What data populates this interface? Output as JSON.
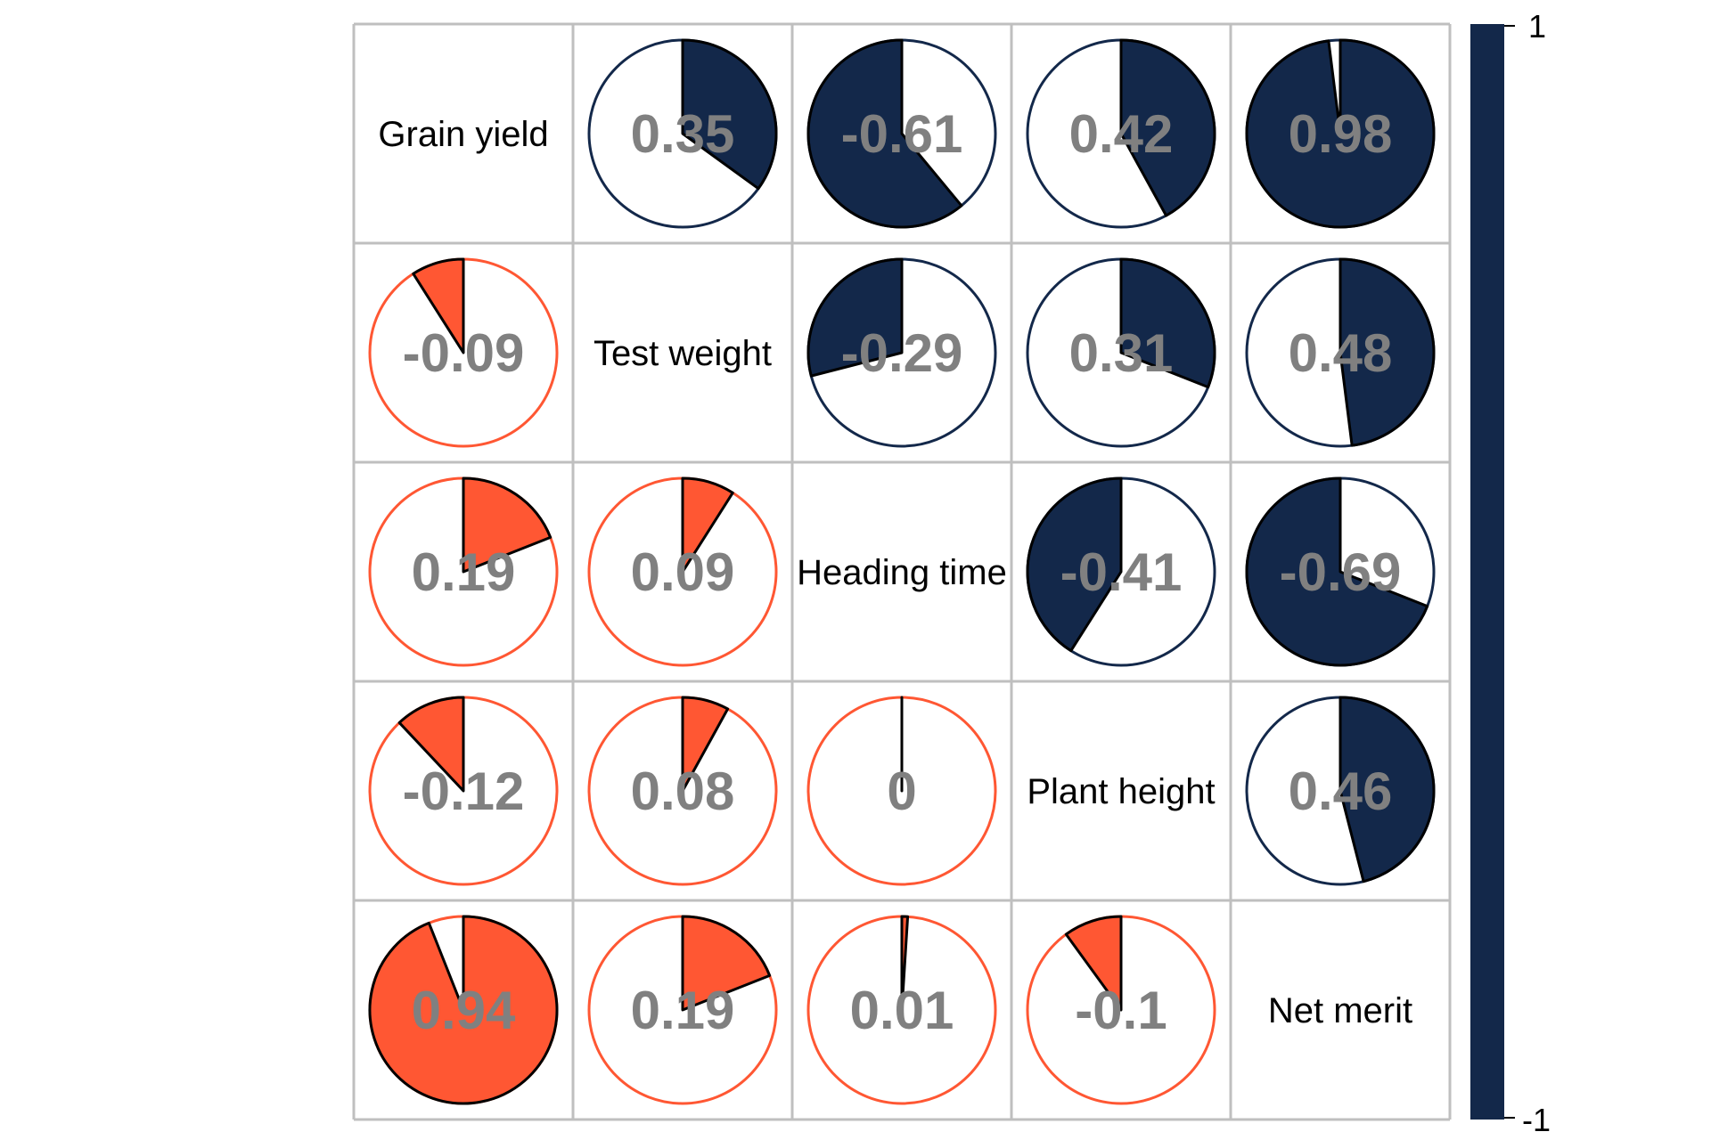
{
  "chart_data": {
    "type": "heatmap",
    "variables": [
      "Grain yield",
      "Test weight",
      "Heading time",
      "Plant height",
      "Net merit"
    ],
    "upper_color": "#13284A",
    "lower_color": "#FF5733",
    "cell_values": [
      [
        null,
        0.35,
        -0.61,
        0.42,
        0.98
      ],
      [
        -0.09,
        null,
        -0.29,
        0.31,
        0.48
      ],
      [
        0.19,
        0.09,
        null,
        -0.41,
        -0.69
      ],
      [
        -0.12,
        0.08,
        0,
        null,
        0.46
      ],
      [
        0.94,
        0.19,
        0.01,
        -0.1,
        null
      ]
    ],
    "value_labels": [
      [
        "",
        "0.35",
        "-0.61",
        "0.42",
        "0.98"
      ],
      [
        "-0.09",
        "",
        "-0.29",
        "0.31",
        "0.48"
      ],
      [
        "0.19",
        "0.09",
        "",
        "-0.41",
        "-0.69"
      ],
      [
        "-0.12",
        "0.08",
        "0",
        "",
        "0.46"
      ],
      [
        "0.94",
        "0.19",
        "0.01",
        "-0.1",
        ""
      ]
    ],
    "colorbar": {
      "max_label": "1",
      "min_label": "-1",
      "range": [
        -1,
        1
      ]
    }
  }
}
